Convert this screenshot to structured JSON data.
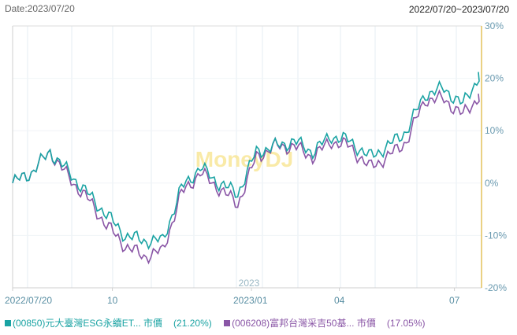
{
  "header": {
    "date_label": "Date:2023/07/20",
    "range_label": "2022/07/20~2023/07/20"
  },
  "watermark": "MoneyDJ",
  "year_marker": "2023",
  "colors": {
    "series1": "#1aa3a3",
    "series2": "#8a56a6",
    "axis": "#e3c25a",
    "grid": "#e4edf3"
  },
  "legend": [
    {
      "label": "(00850)元大臺灣ESG永續ET... 市價",
      "value": "(21.20%)",
      "color": "#1aa3a3"
    },
    {
      "label": "(006208)富邦台灣采吉50基... 市價",
      "value": "(17.05%)",
      "color": "#8a56a6"
    }
  ],
  "chart_data": {
    "type": "line",
    "title": "",
    "xlabel": "",
    "ylabel": "",
    "x_ticks": [
      "2022/07/20",
      "10",
      "2023/01",
      "04",
      "07"
    ],
    "y_ticks": [
      "30%",
      "20%",
      "10%",
      "0%",
      "-10%",
      "-20%"
    ],
    "ylim": [
      -20,
      30
    ],
    "grid": true,
    "legend_position": "bottom",
    "x": [
      "2022/07/20",
      "2022/08",
      "2022/08/15",
      "2022/09",
      "2022/09/15",
      "2022/10",
      "2022/10/15",
      "2022/10/25",
      "2022/11",
      "2022/11/15",
      "2022/12",
      "2022/12/15",
      "2023/01",
      "2023/01/15",
      "2023/02",
      "2023/02/15",
      "2023/03",
      "2023/03/15",
      "2023/04",
      "2023/04/15",
      "2023/05",
      "2023/05/15",
      "2023/06",
      "2023/06/15",
      "2023/07",
      "2023/07/20"
    ],
    "series": [
      {
        "name": "(00850)元大臺灣ESG永續ET... 市價",
        "values": [
          0,
          2,
          6,
          2,
          -2,
          -6,
          -10,
          -11,
          -11,
          -1,
          3,
          0,
          -2,
          6,
          7,
          8,
          6,
          9,
          8,
          5,
          7,
          10,
          17,
          18,
          15,
          21.2
        ]
      },
      {
        "name": "(006208)富邦台灣采吉50基... 市價",
        "values": [
          0,
          2,
          6,
          1,
          -3,
          -8,
          -12,
          -14,
          -13,
          -2,
          2,
          -1,
          -4,
          5,
          7,
          7,
          5,
          8,
          7,
          3,
          5,
          8,
          16,
          16,
          13,
          17.05
        ]
      }
    ]
  }
}
